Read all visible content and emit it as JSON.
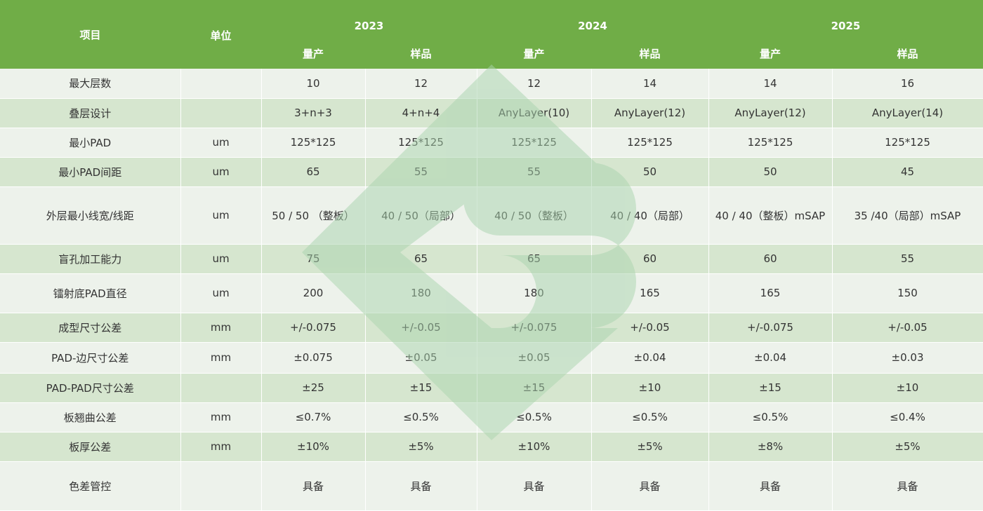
{
  "header": {
    "item": "项目",
    "unit": "单位",
    "years": [
      "2023",
      "2024",
      "2025"
    ],
    "sub": [
      "量产",
      "样品",
      "量产",
      "样品",
      "量产",
      "样品"
    ]
  },
  "rows": [
    {
      "name": "最大层数",
      "unit": "",
      "values": [
        "10",
        "12",
        "12",
        "14",
        "14",
        "16"
      ]
    },
    {
      "name": "叠层设计",
      "unit": "",
      "values": [
        "3+n+3",
        "4+n+4",
        "AnyLayer(10)",
        "AnyLayer(12)",
        "AnyLayer(12)",
        "AnyLayer(14)"
      ]
    },
    {
      "name": "最小PAD",
      "unit": "um",
      "values": [
        "125*125",
        "125*125",
        "125*125",
        "125*125",
        "125*125",
        "125*125"
      ]
    },
    {
      "name": "最小PAD间距",
      "unit": "um",
      "values": [
        "65",
        "55",
        "55",
        "50",
        "50",
        "45"
      ]
    },
    {
      "name": "外层最小线宽/线距",
      "unit": "um",
      "values": [
        "50 / 50 （整板）",
        "40 / 50（局部）",
        "40 / 50（整板）",
        "40 / 40（局部）",
        "40 / 40（整板）mSAP",
        "35 /40（局部）mSAP"
      ]
    },
    {
      "name": "盲孔加工能力",
      "unit": "um",
      "values": [
        "75",
        "65",
        "65",
        "60",
        "60",
        "55"
      ]
    },
    {
      "name": "镭射底PAD直径",
      "unit": "um",
      "values": [
        "200",
        "180",
        "180",
        "165",
        "165",
        "150"
      ]
    },
    {
      "name": "成型尺寸公差",
      "unit": "mm",
      "values": [
        "+/-0.075",
        "+/-0.05",
        "+/-0.075",
        "+/-0.05",
        "+/-0.075",
        "+/-0.05"
      ]
    },
    {
      "name": "PAD-边尺寸公差",
      "unit": "mm",
      "values": [
        "±0.075",
        "±0.05",
        "±0.05",
        "±0.04",
        "±0.04",
        "±0.03"
      ]
    },
    {
      "name": "PAD-PAD尺寸公差",
      "unit": "",
      "values": [
        "±25",
        "±15",
        "±15",
        "±10",
        "±15",
        "±10"
      ]
    },
    {
      "name": "板翘曲公差",
      "unit": "mm",
      "values": [
        "≤0.7%",
        "≤0.5%",
        "≤0.5%",
        "≤0.5%",
        "≤0.5%",
        "≤0.4%"
      ]
    },
    {
      "name": "板厚公差",
      "unit": "mm",
      "values": [
        "±10%",
        "±5%",
        "±10%",
        "±5%",
        "±8%",
        "±5%"
      ]
    },
    {
      "name": "色差管控",
      "unit": "",
      "values": [
        "具备",
        "具备",
        "具备",
        "具备",
        "具备",
        "具备"
      ]
    }
  ],
  "colors": {
    "header_bg": "#70ad47",
    "row_light": "#edf2eb",
    "row_dark": "#d6e6cf",
    "watermark": "#a9d4ae"
  }
}
